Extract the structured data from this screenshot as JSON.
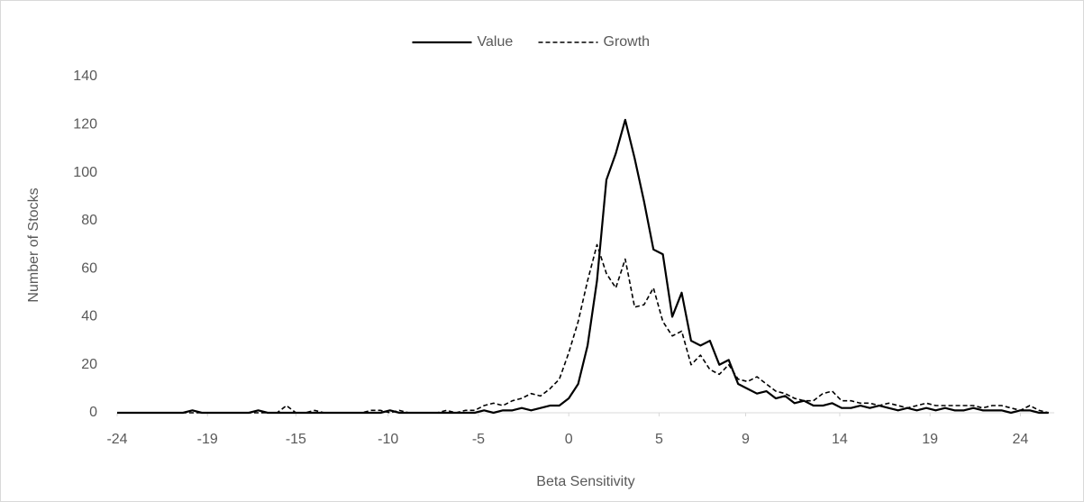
{
  "chart_data": {
    "type": "line",
    "x_label": "Beta Sensitivity",
    "y_label": "Number of Stocks",
    "legend": "top",
    "grid": false,
    "xlim": [
      -24,
      25.8
    ],
    "xticks": [
      -24,
      {
        "value": -19.2,
        "label": "-19"
      },
      {
        "value": -14.5,
        "label": "-15"
      },
      {
        "value": -9.6,
        "label": "-10"
      },
      {
        "value": -4.8,
        "label": "-5"
      },
      0,
      {
        "value": 4.8,
        "label": "5"
      },
      {
        "value": 9.4,
        "label": "9"
      },
      {
        "value": 14.4,
        "label": "14"
      },
      {
        "value": 19.2,
        "label": "19"
      },
      24
    ],
    "ylim": [
      0,
      140
    ],
    "yticks": [
      0,
      20,
      40,
      60,
      80,
      100,
      120,
      140
    ],
    "x": [
      -24,
      -23.5,
      -23,
      -22.5,
      -22,
      -21.5,
      -21,
      -20.5,
      -20,
      -19.5,
      -19,
      -18.5,
      -18,
      -17.5,
      -17,
      -16.5,
      -16,
      -15.5,
      -15,
      -14.5,
      -14,
      -13.5,
      -13,
      -12.5,
      -12,
      -11.5,
      -11,
      -10.5,
      -10,
      -9.5,
      -9,
      -8.5,
      -8,
      -7.5,
      -7,
      -6.5,
      -6,
      -5.5,
      -5,
      -4.5,
      -4,
      -3.5,
      -3,
      -2.5,
      -2,
      -1.5,
      -1,
      -0.5,
      0,
      0.5,
      1,
      1.5,
      2,
      2.5,
      3,
      3.5,
      4,
      4.5,
      5,
      5.5,
      6,
      6.5,
      7,
      7.5,
      8,
      8.5,
      9,
      9.5,
      10,
      10.5,
      11,
      11.5,
      12,
      12.5,
      13,
      13.5,
      14,
      14.5,
      15,
      15.5,
      16,
      16.5,
      17,
      17.5,
      18,
      18.5,
      19,
      19.5,
      20,
      20.5,
      21,
      21.5,
      22,
      22.5,
      23,
      23.5,
      24,
      24.5,
      25,
      25.5
    ],
    "series": [
      {
        "name": "Value",
        "color": "#000000",
        "dash": "solid",
        "values": [
          0,
          0,
          0,
          0,
          0,
          0,
          0,
          0,
          1,
          0,
          0,
          0,
          0,
          0,
          0,
          1,
          0,
          0,
          0,
          0,
          0,
          0,
          0,
          0,
          0,
          0,
          0,
          0,
          0,
          1,
          0,
          0,
          0,
          0,
          0,
          0,
          0,
          0,
          0,
          1,
          0,
          1,
          1,
          2,
          1,
          2,
          3,
          3,
          6,
          12,
          28,
          55,
          97,
          108,
          122,
          106,
          88,
          68,
          66,
          40,
          50,
          30,
          28,
          30,
          20,
          22,
          12,
          10,
          8,
          9,
          6,
          7,
          4,
          5,
          3,
          3,
          4,
          2,
          2,
          3,
          2,
          3,
          2,
          1,
          2,
          1,
          2,
          1,
          2,
          1,
          1,
          2,
          1,
          1,
          1,
          0,
          1,
          1,
          0,
          0
        ]
      },
      {
        "name": "Growth",
        "color": "#000000",
        "dash": "dashed",
        "values": [
          0,
          0,
          0,
          0,
          0,
          0,
          0,
          0,
          0,
          0,
          0,
          0,
          0,
          0,
          0,
          0,
          0,
          0,
          3,
          0,
          0,
          1,
          0,
          0,
          0,
          0,
          0,
          1,
          1,
          0,
          1,
          0,
          0,
          0,
          0,
          1,
          0,
          1,
          1,
          3,
          4,
          3,
          5,
          6,
          8,
          7,
          10,
          14,
          25,
          38,
          55,
          70,
          58,
          52,
          64,
          44,
          45,
          52,
          38,
          32,
          34,
          20,
          24,
          18,
          16,
          20,
          14,
          13,
          15,
          12,
          9,
          8,
          6,
          5,
          5,
          8,
          9,
          5,
          5,
          4,
          4,
          3,
          4,
          3,
          2,
          3,
          4,
          3,
          3,
          3,
          3,
          3,
          2,
          3,
          3,
          2,
          1,
          3,
          1,
          0
        ]
      }
    ]
  }
}
